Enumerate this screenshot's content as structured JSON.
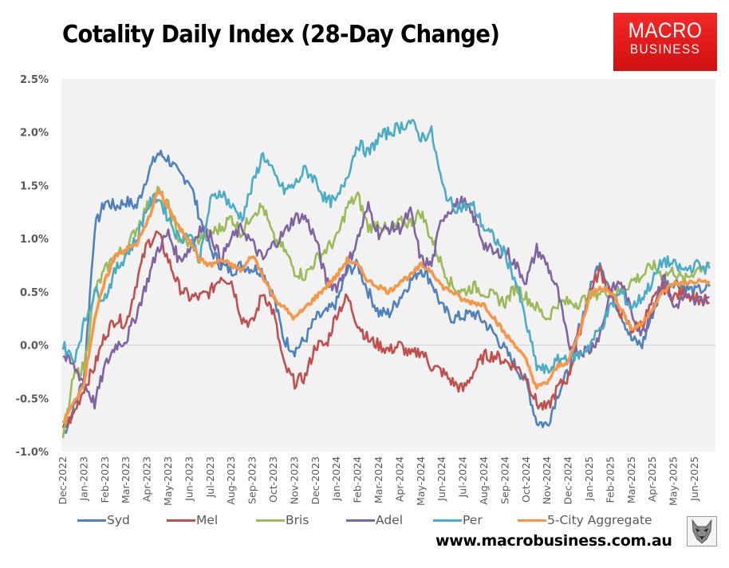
{
  "header": {
    "title": "Cotality Daily Index (28-Day Change)",
    "logo_line1": "MACRO",
    "logo_line2": "BUSINESS"
  },
  "footer": {
    "url": "www.macrobusiness.com.au",
    "wolf_logo": "wolf-icon"
  },
  "colors": {
    "plot_background": "#f2f2f2",
    "zero_line": "#d0d0d0",
    "logo_red": "#e61e1e"
  },
  "chart_data": {
    "type": "line",
    "title": "Cotality Daily Index (28-Day Change)",
    "xlabel": "",
    "ylabel": "",
    "ylim": [
      -1.0,
      2.5
    ],
    "y_ticks": [
      "-1.0%",
      "-0.5%",
      "0.0%",
      "0.5%",
      "1.0%",
      "1.5%",
      "2.0%",
      "2.5%"
    ],
    "y_tick_values": [
      -1.0,
      -0.5,
      0.0,
      0.5,
      1.0,
      1.5,
      2.0,
      2.5
    ],
    "x_tick_labels": [
      "Dec-2022",
      "Jan-2023",
      "Feb-2023",
      "Mar-2023",
      "Apr-2023",
      "May-2023",
      "Jun-2023",
      "Jul-2023",
      "Aug-2023",
      "Sep-2023",
      "Oct-2023",
      "Nov-2023",
      "Dec-2023",
      "Jan-2024",
      "Feb-2024",
      "Mar-2024",
      "Apr-2024",
      "May-2024",
      "Jun-2024",
      "Jul-2024",
      "Aug-2024",
      "Sep-2024",
      "Oct-2024",
      "Nov-2024",
      "Dec-2024",
      "Jan-2025",
      "Feb-2025",
      "Mar-2025",
      "Apr-2025",
      "May-2025",
      "Jun-2025"
    ],
    "x_unit": "months since Dec-2022 (semi-monthly samples)",
    "x": [
      0,
      0.5,
      1,
      1.5,
      2,
      2.5,
      3,
      3.5,
      4,
      4.5,
      5,
      5.5,
      6,
      6.5,
      7,
      7.5,
      8,
      8.5,
      9,
      9.5,
      10,
      10.5,
      11,
      11.5,
      12,
      12.5,
      13,
      13.5,
      14,
      14.5,
      15,
      15.5,
      16,
      16.5,
      17,
      17.5,
      18,
      18.5,
      19,
      19.5,
      20,
      20.5,
      21,
      21.5,
      22,
      22.5,
      23,
      23.5,
      24,
      24.5,
      25,
      25.5,
      26,
      26.5,
      27,
      27.5,
      28,
      28.5,
      29,
      29.5,
      30,
      30.7
    ],
    "grid": false,
    "zero_line": true,
    "legend_position": "bottom",
    "series": [
      {
        "name": "Syd",
        "color": "#4f81bd",
        "values": [
          -0.85,
          -0.6,
          -0.3,
          1.1,
          1.35,
          1.3,
          1.35,
          1.3,
          1.6,
          1.8,
          1.75,
          1.6,
          1.55,
          1.2,
          0.9,
          0.75,
          0.7,
          0.75,
          0.72,
          0.7,
          0.45,
          0.05,
          -0.05,
          0.05,
          0.25,
          0.3,
          0.4,
          0.7,
          0.75,
          0.5,
          0.3,
          0.3,
          0.45,
          0.6,
          0.72,
          0.6,
          0.35,
          0.25,
          0.27,
          0.3,
          0.22,
          0.1,
          -0.05,
          -0.2,
          -0.35,
          -0.72,
          -0.75,
          -0.45,
          -0.25,
          0.15,
          0.5,
          0.8,
          0.5,
          0.3,
          0.05,
          0.0,
          0.3,
          0.55,
          0.6,
          0.55,
          0.5,
          0.55
        ]
      },
      {
        "name": "Mel",
        "color": "#c0504d",
        "values": [
          -0.8,
          -0.65,
          -0.4,
          -0.2,
          0.1,
          0.25,
          0.2,
          0.6,
          0.95,
          1.05,
          0.8,
          0.55,
          0.45,
          0.45,
          0.5,
          0.65,
          0.6,
          0.25,
          0.2,
          0.5,
          0.3,
          -0.2,
          -0.35,
          -0.3,
          0.0,
          0.0,
          0.3,
          0.45,
          0.2,
          0.05,
          0.0,
          -0.05,
          0.0,
          -0.1,
          -0.05,
          -0.2,
          -0.25,
          -0.35,
          -0.42,
          -0.25,
          -0.1,
          -0.1,
          -0.15,
          -0.2,
          -0.3,
          -0.55,
          -0.6,
          -0.4,
          -0.3,
          0.1,
          0.5,
          0.7,
          0.5,
          0.3,
          0.15,
          0.2,
          0.4,
          0.55,
          0.45,
          0.5,
          0.45,
          0.4
        ]
      },
      {
        "name": "Bris",
        "color": "#9bbb59",
        "values": [
          -0.9,
          -0.3,
          -0.2,
          0.5,
          0.7,
          0.85,
          0.9,
          1.1,
          1.3,
          1.45,
          1.3,
          1.0,
          0.95,
          1.0,
          1.05,
          1.1,
          1.2,
          1.05,
          1.25,
          1.3,
          1.0,
          0.9,
          0.7,
          0.65,
          0.8,
          0.9,
          1.0,
          1.3,
          1.4,
          1.1,
          1.15,
          1.05,
          1.15,
          1.15,
          1.25,
          1.0,
          0.75,
          0.55,
          0.5,
          0.55,
          0.5,
          0.45,
          0.4,
          0.55,
          0.45,
          0.35,
          0.25,
          0.4,
          0.4,
          0.4,
          0.45,
          0.5,
          0.5,
          0.5,
          0.6,
          0.65,
          0.75,
          0.65,
          0.7,
          0.6,
          0.7,
          0.78
        ]
      },
      {
        "name": "Adel",
        "color": "#8064a2",
        "values": [
          -0.1,
          -0.2,
          -0.35,
          -0.55,
          -0.2,
          0.0,
          0.05,
          0.3,
          0.6,
          0.9,
          1.05,
          0.8,
          0.9,
          1.1,
          1.05,
          0.8,
          1.0,
          1.1,
          0.95,
          0.8,
          0.95,
          1.05,
          1.2,
          1.2,
          1.0,
          0.6,
          0.55,
          0.75,
          1.0,
          1.3,
          1.05,
          1.1,
          1.1,
          1.25,
          0.8,
          0.75,
          1.2,
          1.3,
          1.35,
          1.2,
          0.95,
          0.85,
          0.9,
          0.75,
          0.6,
          0.9,
          0.75,
          0.5,
          0.0,
          -0.05,
          -0.05,
          0.1,
          0.5,
          0.6,
          0.3,
          0.1,
          0.35,
          0.65,
          0.35,
          0.45,
          0.4,
          0.45
        ]
      },
      {
        "name": "Per",
        "color": "#4bacc6",
        "values": [
          0.0,
          -0.15,
          0.2,
          0.5,
          0.45,
          0.7,
          0.85,
          1.0,
          1.3,
          1.4,
          1.2,
          1.0,
          1.05,
          0.8,
          1.35,
          1.45,
          1.3,
          1.2,
          1.5,
          1.8,
          1.6,
          1.45,
          1.5,
          1.65,
          1.55,
          1.35,
          1.35,
          1.6,
          1.9,
          1.8,
          1.95,
          2.0,
          2.05,
          2.1,
          1.95,
          2.0,
          1.5,
          1.3,
          1.3,
          1.3,
          1.1,
          1.0,
          0.85,
          0.6,
          0.2,
          -0.2,
          -0.25,
          -0.15,
          -0.1,
          -0.1,
          0.0,
          0.15,
          0.35,
          0.5,
          0.35,
          0.45,
          0.6,
          0.8,
          0.75,
          0.7,
          0.75,
          0.72
        ]
      },
      {
        "name": "5-City Aggregate",
        "color": "#f79646",
        "values": [
          -0.72,
          -0.55,
          -0.35,
          0.25,
          0.6,
          0.85,
          0.9,
          0.95,
          1.15,
          1.45,
          1.3,
          1.1,
          1.0,
          0.8,
          0.75,
          0.8,
          0.75,
          0.7,
          0.85,
          0.65,
          0.45,
          0.35,
          0.25,
          0.35,
          0.45,
          0.55,
          0.65,
          0.8,
          0.75,
          0.6,
          0.55,
          0.5,
          0.6,
          0.65,
          0.75,
          0.7,
          0.55,
          0.5,
          0.42,
          0.4,
          0.38,
          0.25,
          0.1,
          0.0,
          -0.15,
          -0.4,
          -0.35,
          -0.2,
          -0.15,
          0.1,
          0.45,
          0.55,
          0.5,
          0.35,
          0.15,
          0.2,
          0.35,
          0.5,
          0.58,
          0.58,
          0.6,
          0.6
        ]
      }
    ]
  }
}
